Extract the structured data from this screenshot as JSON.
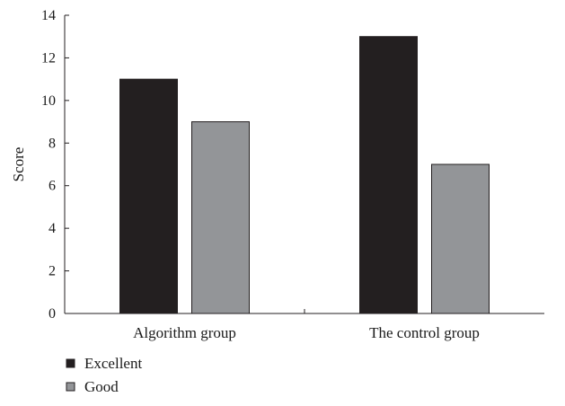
{
  "chart_data": {
    "type": "bar",
    "categories": [
      "Algorithm group",
      "The control group"
    ],
    "series": [
      {
        "name": "Excellent",
        "values": [
          11,
          13
        ],
        "color": "#231f20"
      },
      {
        "name": "Good",
        "values": [
          9,
          7
        ],
        "color": "#939598"
      }
    ],
    "ylabel": "Score",
    "xlabel": "",
    "ylim": [
      0,
      14
    ],
    "yticks": [
      0,
      2,
      4,
      6,
      8,
      10,
      12,
      14
    ],
    "grid": false,
    "legend_position": "bottom-left"
  }
}
